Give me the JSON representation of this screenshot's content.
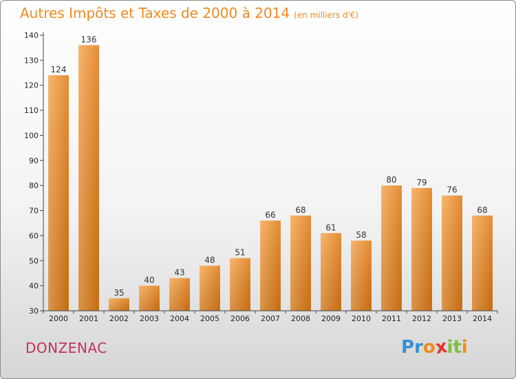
{
  "title": "Autres Impôts et Taxes de 2000 à 2014",
  "unit": "(en milliers d'€)",
  "place": "DONZENAC",
  "logo": {
    "text": "Proxiti",
    "letters": [
      {
        "char": "P",
        "color": "#3a8fd6"
      },
      {
        "char": "r",
        "color": "#3a8fd6"
      },
      {
        "char": "o",
        "color": "#f08c1c"
      },
      {
        "char": "x",
        "color": "#e3342f"
      },
      {
        "char": "i",
        "color": "#7fbf3f"
      },
      {
        "char": "t",
        "color": "#7fbf3f"
      },
      {
        "char": "i",
        "color": "#f08c1c"
      }
    ]
  },
  "colors": {
    "accent": "#ef8a22",
    "place": "#c0335a",
    "bar_light": "#f6a855",
    "bar_dark": "#e07a12"
  },
  "chart_data": {
    "type": "bar",
    "title": "Autres Impôts et Taxes de 2000 à 2014",
    "xlabel": "",
    "ylabel": "",
    "categories": [
      "2000",
      "2001",
      "2002",
      "2003",
      "2004",
      "2005",
      "2006",
      "2007",
      "2008",
      "2009",
      "2010",
      "2011",
      "2012",
      "2013",
      "2014"
    ],
    "values": [
      124,
      136,
      35,
      40,
      43,
      48,
      51,
      66,
      68,
      61,
      58,
      80,
      79,
      76,
      68
    ],
    "ylim": [
      30,
      140
    ],
    "yticks": [
      30,
      40,
      50,
      60,
      70,
      80,
      90,
      100,
      110,
      120,
      130,
      140
    ],
    "grid": false,
    "legend": "none",
    "data_labels": true
  }
}
